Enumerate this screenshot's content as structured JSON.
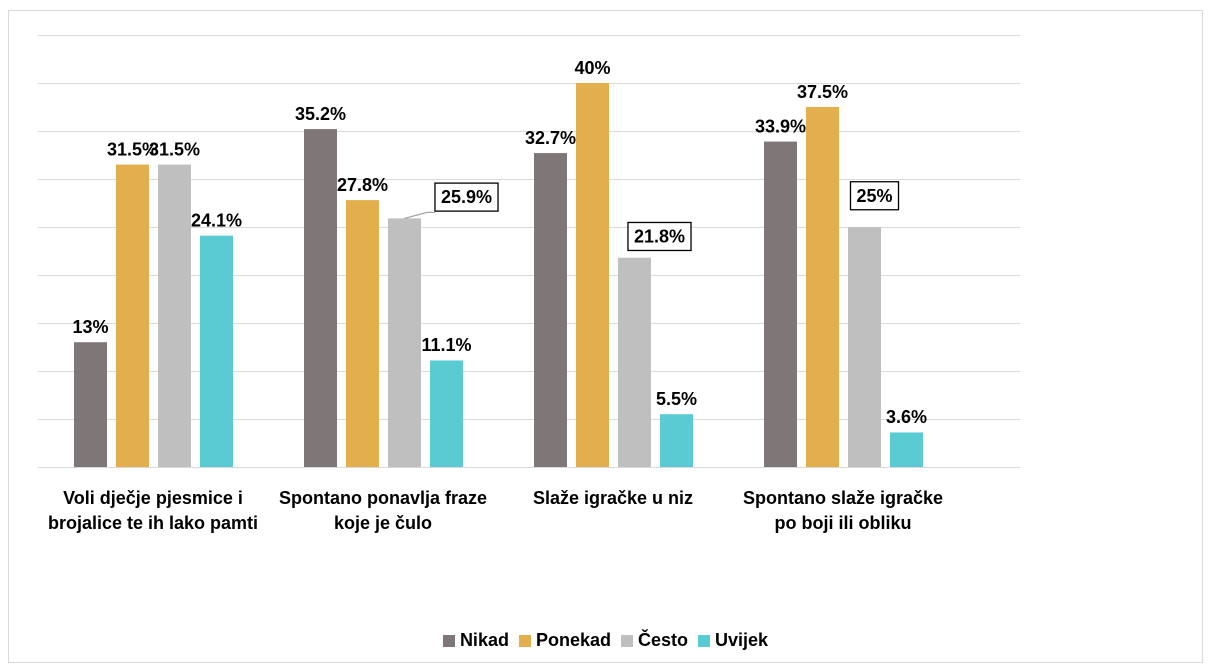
{
  "chart_data": {
    "type": "bar",
    "categories": [
      "Voli dječje pjesmice i brojalice te ih lako pamti",
      "Spontano ponavlja fraze koje je čulo",
      "Slaže igračke u niz",
      "Spontano slaže igračke po boji ili obliku"
    ],
    "series": [
      {
        "name": "Nikad",
        "color": "#7f7777",
        "values": [
          13,
          35.2,
          32.7,
          33.9
        ],
        "value_labels": [
          "13%",
          "35.2%",
          "32.7%",
          "33.9%"
        ]
      },
      {
        "name": "Ponekad",
        "color": "#e3ae4c",
        "values": [
          31.5,
          27.8,
          40,
          37.5
        ],
        "value_labels": [
          "31.5%",
          "27.8%",
          "40%",
          "37.5%"
        ]
      },
      {
        "name": "Često",
        "color": "#bfbfbf",
        "values": [
          31.5,
          25.9,
          21.8,
          25
        ],
        "value_labels": [
          "31.5%",
          "25.9%",
          "21.8%",
          "25%"
        ]
      },
      {
        "name": "Uvijek",
        "color": "#5bcbd3",
        "values": [
          24.1,
          11.1,
          5.5,
          3.6
        ],
        "value_labels": [
          "24.1%",
          "11.1%",
          "5.5%",
          "3.6%"
        ]
      }
    ],
    "ylim": [
      0,
      45
    ],
    "yticks": [
      0,
      5,
      10,
      15,
      20,
      25,
      30,
      35,
      40,
      45
    ],
    "grid": true,
    "legend": "bottom"
  }
}
